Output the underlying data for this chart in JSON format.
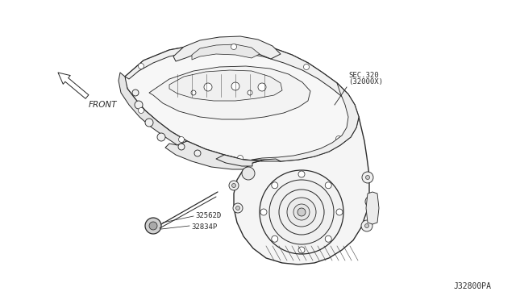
{
  "background_color": "#ffffff",
  "line_color": "#2a2a2a",
  "line_width": 0.9,
  "label_front": "FRONT",
  "label_sec_line1": "SEC.320",
  "label_sec_line2": "(32000X)",
  "label_part1": "32562D",
  "label_part2": "32834P",
  "label_ref": "J32800PA",
  "fig_width": 6.4,
  "fig_height": 3.72,
  "dpi": 100,
  "xlim": [
    0,
    640
  ],
  "ylim": [
    372,
    0
  ]
}
